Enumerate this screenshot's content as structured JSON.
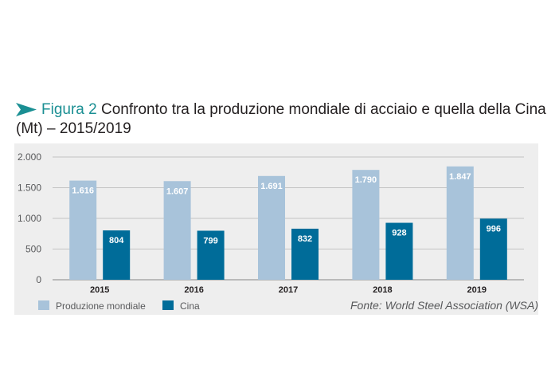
{
  "title": {
    "figure": "Figura 2",
    "text": "Confronto tra la produzione mondiale di acciaio e quella della Cina (Mt) – 2015/2019"
  },
  "source": "Fonte: World Steel Association (WSA)",
  "colors": {
    "arrow": "#1a8f93",
    "figure_label": "#1a8f93",
    "world": "#a8c3da",
    "china": "#006c99",
    "panel": "#eeeeee"
  },
  "chart_data": {
    "type": "bar",
    "categories": [
      "2015",
      "2016",
      "2017",
      "2018",
      "2019"
    ],
    "series": [
      {
        "name": "Produzione mondiale",
        "values": [
          1616,
          1607,
          1691,
          1790,
          1847
        ],
        "labels": [
          "1.616",
          "1.607",
          "1.691",
          "1.790",
          "1.847"
        ]
      },
      {
        "name": "Cina",
        "values": [
          804,
          799,
          832,
          928,
          996
        ],
        "labels": [
          "804",
          "799",
          "832",
          "928",
          "996"
        ]
      }
    ],
    "yticks": [
      {
        "value": 0,
        "label": "0"
      },
      {
        "value": 500,
        "label": "500"
      },
      {
        "value": 1000,
        "label": "1.000"
      },
      {
        "value": 1500,
        "label": "1.500"
      },
      {
        "value": 2000,
        "label": "2.000"
      }
    ],
    "ylim": [
      0,
      2000
    ],
    "grid": true,
    "legend_position": "bottom-left"
  }
}
